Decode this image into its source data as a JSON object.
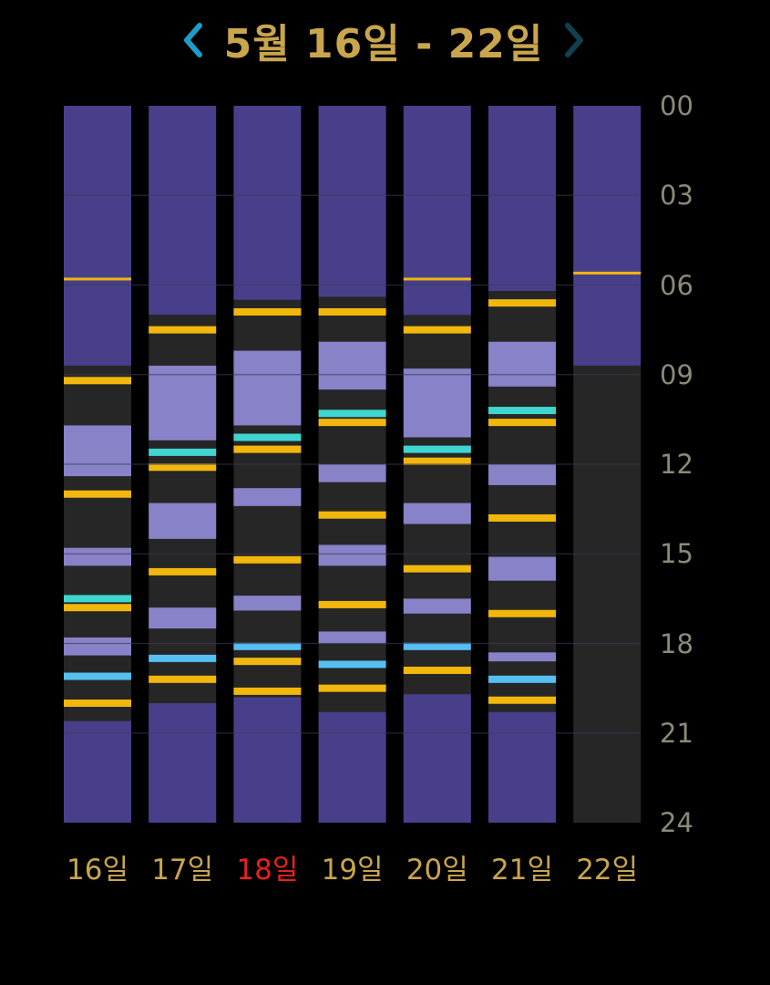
{
  "header": {
    "title": "5월 16일 - 22일",
    "prev_icon": "chevron-left-icon",
    "next_icon": "chevron-right-icon",
    "prev_color": "#1E9CC8",
    "next_color": "#12404E"
  },
  "colors": {
    "sleep": "#483F8B",
    "awake": "#262626",
    "nap": "#8882C8",
    "feed": "#F2B70C",
    "event_teal": "#3FD6D0",
    "event_blue": "#55BFF2",
    "title": "#C9A54C",
    "day_label": "#C9A54C",
    "today_label": "#E8201F",
    "hour_label": "#8A8A78",
    "gridline": "#3A3A58"
  },
  "hour_labels": [
    "00",
    "03",
    "06",
    "09",
    "12",
    "15",
    "18",
    "21",
    "24"
  ],
  "days": [
    {
      "label": "16일",
      "today": false,
      "blocks": [
        {
          "start": 0,
          "end": 8.7,
          "type": "sleep"
        },
        {
          "start": 8.7,
          "end": 24,
          "type": "awake"
        },
        {
          "start": 10.7,
          "end": 12.4,
          "type": "nap"
        },
        {
          "start": 14.8,
          "end": 15.4,
          "type": "nap"
        },
        {
          "start": 17.8,
          "end": 18.4,
          "type": "nap"
        },
        {
          "start": 20.6,
          "end": 24,
          "type": "sleep"
        }
      ],
      "lines": [
        {
          "time": 5.8,
          "type": "feed",
          "thin": true
        },
        {
          "time": 9.2,
          "type": "feed"
        },
        {
          "time": 13.0,
          "type": "feed"
        },
        {
          "time": 16.5,
          "type": "event_teal"
        },
        {
          "time": 16.8,
          "type": "feed"
        },
        {
          "time": 19.1,
          "type": "event_blue"
        },
        {
          "time": 20.0,
          "type": "feed"
        }
      ]
    },
    {
      "label": "17일",
      "today": false,
      "blocks": [
        {
          "start": 0,
          "end": 7.0,
          "type": "sleep"
        },
        {
          "start": 7.0,
          "end": 24,
          "type": "awake"
        },
        {
          "start": 8.7,
          "end": 11.2,
          "type": "nap"
        },
        {
          "start": 13.3,
          "end": 14.5,
          "type": "nap"
        },
        {
          "start": 16.8,
          "end": 17.5,
          "type": "nap"
        },
        {
          "start": 20.0,
          "end": 24,
          "type": "sleep"
        }
      ],
      "lines": [
        {
          "time": 7.5,
          "type": "feed"
        },
        {
          "time": 11.6,
          "type": "event_teal"
        },
        {
          "time": 12.1,
          "type": "feed"
        },
        {
          "time": 15.6,
          "type": "feed"
        },
        {
          "time": 18.5,
          "type": "event_blue"
        },
        {
          "time": 19.2,
          "type": "feed"
        }
      ]
    },
    {
      "label": "18일",
      "today": true,
      "blocks": [
        {
          "start": 0,
          "end": 6.5,
          "type": "sleep"
        },
        {
          "start": 6.5,
          "end": 24,
          "type": "awake"
        },
        {
          "start": 8.2,
          "end": 10.7,
          "type": "nap"
        },
        {
          "start": 12.8,
          "end": 13.4,
          "type": "nap"
        },
        {
          "start": 16.4,
          "end": 16.9,
          "type": "nap"
        },
        {
          "start": 19.8,
          "end": 24,
          "type": "sleep"
        }
      ],
      "lines": [
        {
          "time": 6.9,
          "type": "feed"
        },
        {
          "time": 11.1,
          "type": "event_teal"
        },
        {
          "time": 11.5,
          "type": "feed"
        },
        {
          "time": 15.2,
          "type": "feed"
        },
        {
          "time": 18.1,
          "type": "event_blue"
        },
        {
          "time": 18.6,
          "type": "feed"
        },
        {
          "time": 19.6,
          "type": "feed"
        }
      ]
    },
    {
      "label": "19일",
      "today": false,
      "blocks": [
        {
          "start": 0,
          "end": 6.4,
          "type": "sleep"
        },
        {
          "start": 6.4,
          "end": 24,
          "type": "awake"
        },
        {
          "start": 7.9,
          "end": 9.5,
          "type": "nap"
        },
        {
          "start": 12.0,
          "end": 12.6,
          "type": "nap"
        },
        {
          "start": 14.7,
          "end": 15.4,
          "type": "nap"
        },
        {
          "start": 17.6,
          "end": 18.0,
          "type": "nap"
        },
        {
          "start": 20.3,
          "end": 24,
          "type": "sleep"
        }
      ],
      "lines": [
        {
          "time": 6.9,
          "type": "feed"
        },
        {
          "time": 10.3,
          "type": "event_teal"
        },
        {
          "time": 10.6,
          "type": "feed"
        },
        {
          "time": 13.7,
          "type": "feed"
        },
        {
          "time": 16.7,
          "type": "feed"
        },
        {
          "time": 18.7,
          "type": "event_blue"
        },
        {
          "time": 19.5,
          "type": "feed"
        }
      ]
    },
    {
      "label": "20일",
      "today": false,
      "blocks": [
        {
          "start": 0,
          "end": 6.5,
          "type": "sleep"
        },
        {
          "start": 6.2,
          "end": 24,
          "type": "awake"
        },
        {
          "start": 6.2,
          "end": 7.0,
          "type": "sleep"
        },
        {
          "start": 8.8,
          "end": 11.1,
          "type": "nap"
        },
        {
          "start": 13.3,
          "end": 14.0,
          "type": "nap"
        },
        {
          "start": 16.5,
          "end": 17.0,
          "type": "nap"
        },
        {
          "start": 19.7,
          "end": 24,
          "type": "sleep"
        }
      ],
      "lines": [
        {
          "time": 5.8,
          "type": "feed",
          "thin": true
        },
        {
          "time": 7.5,
          "type": "feed"
        },
        {
          "time": 11.5,
          "type": "event_teal"
        },
        {
          "time": 11.9,
          "type": "feed"
        },
        {
          "time": 15.5,
          "type": "feed"
        },
        {
          "time": 18.1,
          "type": "event_blue"
        },
        {
          "time": 18.9,
          "type": "feed"
        }
      ]
    },
    {
      "label": "21일",
      "today": false,
      "blocks": [
        {
          "start": 0,
          "end": 6.2,
          "type": "sleep"
        },
        {
          "start": 6.2,
          "end": 24,
          "type": "awake"
        },
        {
          "start": 7.9,
          "end": 9.4,
          "type": "nap"
        },
        {
          "start": 12.0,
          "end": 12.7,
          "type": "nap"
        },
        {
          "start": 15.1,
          "end": 15.9,
          "type": "nap"
        },
        {
          "start": 18.3,
          "end": 18.6,
          "type": "nap"
        },
        {
          "start": 20.3,
          "end": 24,
          "type": "sleep"
        }
      ],
      "lines": [
        {
          "time": 6.6,
          "type": "feed"
        },
        {
          "time": 10.2,
          "type": "event_teal"
        },
        {
          "time": 10.6,
          "type": "feed"
        },
        {
          "time": 13.8,
          "type": "feed"
        },
        {
          "time": 17.0,
          "type": "feed"
        },
        {
          "time": 19.2,
          "type": "event_blue"
        },
        {
          "time": 19.9,
          "type": "feed"
        }
      ]
    },
    {
      "label": "22일",
      "today": false,
      "blocks": [
        {
          "start": 0,
          "end": 8.7,
          "type": "sleep"
        },
        {
          "start": 8.7,
          "end": 24,
          "type": "awake"
        }
      ],
      "lines": [
        {
          "time": 5.6,
          "type": "feed",
          "thin": true
        }
      ]
    }
  ]
}
